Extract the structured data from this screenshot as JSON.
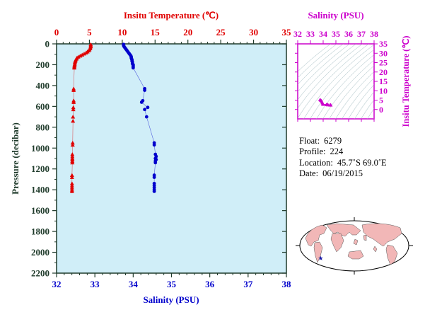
{
  "colors": {
    "temperature": "#e00000",
    "salinity": "#0000cc",
    "inset": "#cc00cc",
    "axis_dark": "#1e3a2a",
    "plot_bg": "#d0eef8",
    "ocean": "#ffffff",
    "land": "#f2b7b7"
  },
  "chart_data": [
    {
      "type": "scatter",
      "title": "",
      "top_axis": {
        "label": "Insitu Temperature (℃)",
        "range": [
          0,
          35
        ],
        "ticks": [
          "0",
          "5",
          "10",
          "15",
          "20",
          "25",
          "30",
          "35"
        ]
      },
      "bottom_axis": {
        "label": "Salinity (PSU)",
        "range": [
          32,
          38
        ],
        "ticks": [
          "32",
          "33",
          "34",
          "35",
          "36",
          "37",
          "38"
        ]
      },
      "y_axis": {
        "label": "Pressure (decibar)",
        "range": [
          0,
          2200
        ],
        "inverted": true,
        "ticks": [
          "0",
          "200",
          "400",
          "600",
          "800",
          "1000",
          "1200",
          "1400",
          "1600",
          "1800",
          "2000",
          "2200"
        ]
      },
      "grid": false,
      "series": [
        {
          "variable": "temperature",
          "marker": "triangle",
          "points": [
            [
              5.2,
              5
            ],
            [
              5.2,
              15
            ],
            [
              5.2,
              25
            ],
            [
              5.15,
              35
            ],
            [
              5.1,
              45
            ],
            [
              5.0,
              55
            ],
            [
              4.9,
              65
            ],
            [
              4.7,
              75
            ],
            [
              4.5,
              85
            ],
            [
              4.2,
              95
            ],
            [
              3.9,
              105
            ],
            [
              3.6,
              115
            ],
            [
              3.3,
              125
            ],
            [
              3.1,
              135
            ],
            [
              3.0,
              145
            ],
            [
              2.9,
              155
            ],
            [
              2.85,
              165
            ],
            [
              2.8,
              175
            ],
            [
              2.78,
              190
            ],
            [
              2.75,
              200
            ],
            [
              2.72,
              210
            ],
            [
              2.7,
              220
            ],
            [
              2.7,
              230
            ],
            [
              2.6,
              430
            ],
            [
              2.6,
              445
            ],
            [
              2.6,
              545
            ],
            [
              2.6,
              560
            ],
            [
              2.55,
              610
            ],
            [
              2.55,
              630
            ],
            [
              2.5,
              700
            ],
            [
              2.5,
              740
            ],
            [
              2.45,
              950
            ],
            [
              2.45,
              970
            ],
            [
              2.4,
              1060
            ],
            [
              2.4,
              1080
            ],
            [
              2.4,
              1100
            ],
            [
              2.4,
              1110
            ],
            [
              2.4,
              1125
            ],
            [
              2.4,
              1140
            ],
            [
              2.35,
              1260
            ],
            [
              2.35,
              1280
            ],
            [
              2.35,
              1340
            ],
            [
              2.35,
              1360
            ],
            [
              2.35,
              1380
            ],
            [
              2.35,
              1400
            ],
            [
              2.35,
              1415
            ]
          ]
        },
        {
          "variable": "salinity",
          "marker": "circle",
          "points": [
            [
              33.75,
              5
            ],
            [
              33.75,
              15
            ],
            [
              33.76,
              25
            ],
            [
              33.78,
              35
            ],
            [
              33.8,
              45
            ],
            [
              33.82,
              55
            ],
            [
              33.84,
              65
            ],
            [
              33.86,
              75
            ],
            [
              33.88,
              85
            ],
            [
              33.9,
              95
            ],
            [
              33.92,
              105
            ],
            [
              33.94,
              115
            ],
            [
              33.95,
              125
            ],
            [
              33.95,
              135
            ],
            [
              33.96,
              145
            ],
            [
              33.97,
              155
            ],
            [
              33.97,
              165
            ],
            [
              33.98,
              175
            ],
            [
              33.98,
              190
            ],
            [
              34.0,
              200
            ],
            [
              34.0,
              210
            ],
            [
              34.0,
              220
            ],
            [
              34.0,
              230
            ],
            [
              34.3,
              430
            ],
            [
              34.3,
              445
            ],
            [
              34.25,
              545
            ],
            [
              34.22,
              560
            ],
            [
              34.38,
              610
            ],
            [
              34.3,
              630
            ],
            [
              34.35,
              700
            ],
            [
              34.55,
              950
            ],
            [
              34.55,
              970
            ],
            [
              34.58,
              1060
            ],
            [
              34.6,
              1080
            ],
            [
              34.58,
              1100
            ],
            [
              34.6,
              1110
            ],
            [
              34.58,
              1125
            ],
            [
              34.58,
              1140
            ],
            [
              34.55,
              1260
            ],
            [
              34.55,
              1280
            ],
            [
              34.55,
              1340
            ],
            [
              34.55,
              1360
            ],
            [
              34.55,
              1380
            ],
            [
              34.55,
              1400
            ],
            [
              34.55,
              1415
            ]
          ]
        }
      ]
    },
    {
      "type": "scatter",
      "title": "",
      "x_axis": {
        "label": "Salinity (PSU)",
        "range": [
          32,
          38
        ],
        "ticks": [
          "32",
          "33",
          "34",
          "35",
          "36",
          "37",
          "38"
        ]
      },
      "y_axis": {
        "label": "Insitu Temperature (℃)",
        "range": [
          -5,
          35
        ],
        "ticks": [
          "0",
          "5",
          "10",
          "15",
          "20",
          "25",
          "30",
          "35"
        ]
      },
      "background": "isopycnal contour lines",
      "points": [
        [
          33.75,
          5.2
        ],
        [
          33.8,
          5.0
        ],
        [
          33.86,
          4.7
        ],
        [
          33.9,
          4.2
        ],
        [
          33.94,
          3.6
        ],
        [
          33.96,
          3.0
        ],
        [
          34.0,
          2.75
        ],
        [
          34.25,
          2.6
        ],
        [
          34.3,
          2.6
        ],
        [
          34.38,
          2.55
        ],
        [
          34.35,
          2.5
        ],
        [
          34.55,
          2.45
        ],
        [
          34.6,
          2.4
        ],
        [
          34.58,
          2.4
        ],
        [
          34.55,
          2.35
        ]
      ]
    }
  ],
  "info": {
    "float_label": "Float:",
    "float_value": "6279",
    "profile_label": "Profile:",
    "profile_value": "224",
    "location_label": "Location:",
    "location_value": "45.7˚S  69.0˚E",
    "date_label": "Date:",
    "date_value": "06/19/2015"
  },
  "map": {
    "marker_lat": -45.7,
    "marker_lon": 69.0,
    "marker_symbol": "★"
  }
}
